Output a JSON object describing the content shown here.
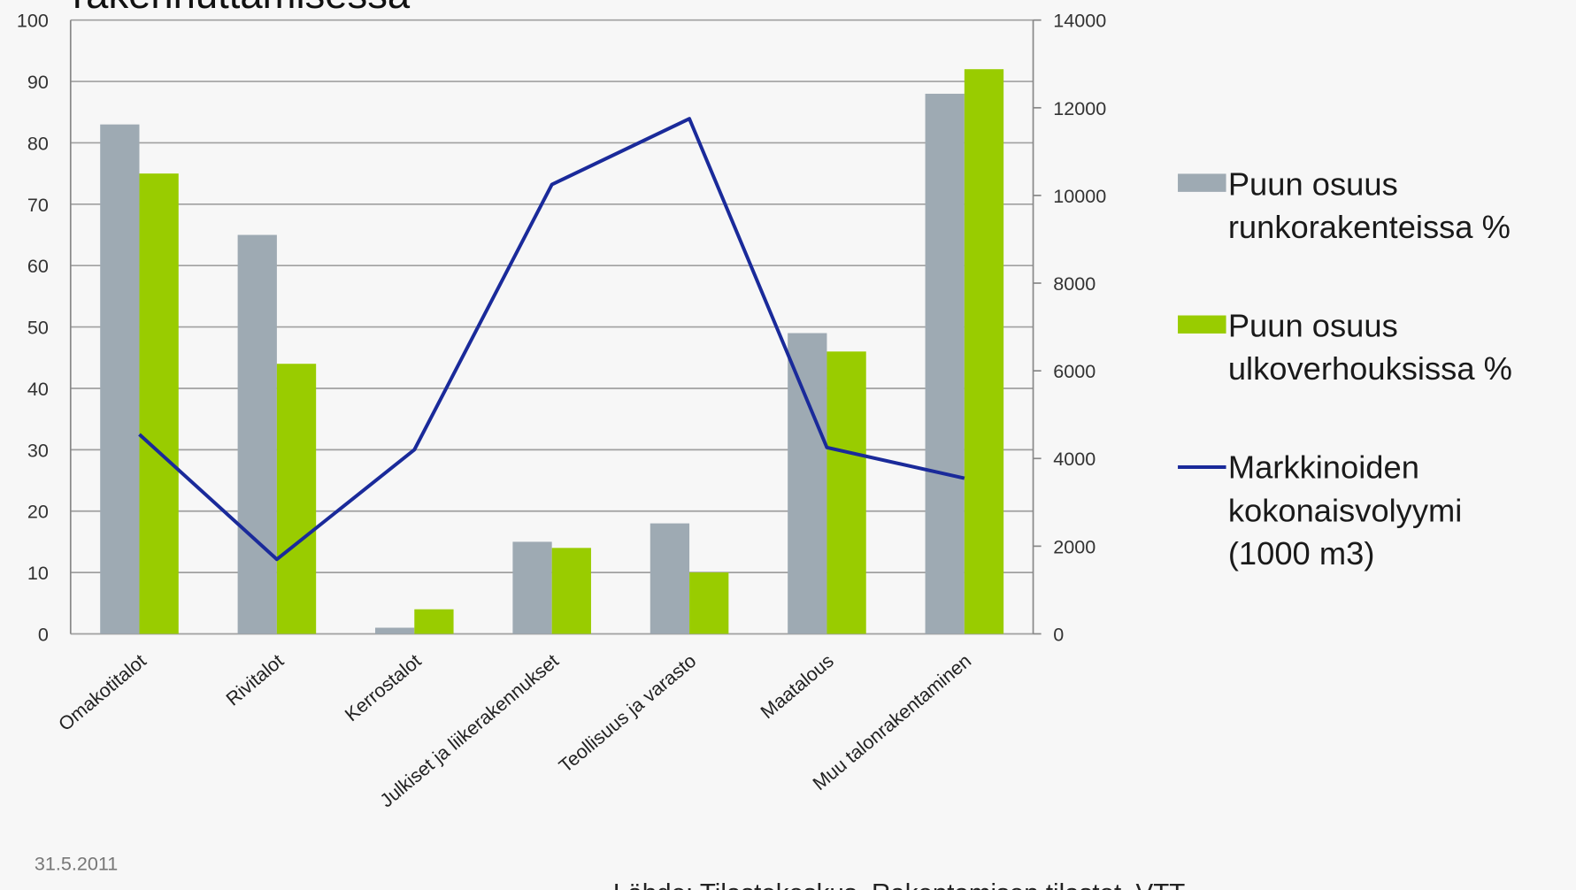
{
  "chart_data": {
    "type": "bar",
    "title": "rakennuttamisessa",
    "date": "31.5.2011",
    "source": "Lähde: Tilastokeskus, Rakentamisen tilastot, VTT",
    "categories": [
      "Omakotitalot",
      "Rivitalot",
      "Kerrostalot",
      "Julkiset ja liikerakennukset",
      "Teollisuus ja varasto",
      "Maatalous",
      "Muu talonrakentaminen"
    ],
    "series": [
      {
        "name": "Puun osuus runkorakenteissa %",
        "type": "bar",
        "color": "#9eaab3",
        "values": [
          83,
          65,
          1,
          15,
          18,
          49,
          88
        ]
      },
      {
        "name": "Puun osuus ulkoverhouksissa %",
        "type": "bar",
        "color": "#99cc00",
        "values": [
          75,
          44,
          4,
          14,
          10,
          46,
          92
        ]
      },
      {
        "name": "Markkinoiden kokonaisvolyymi (1000 m3)",
        "type": "line",
        "axis": "y2",
        "color": "#1a2a9a",
        "values": [
          4550,
          1700,
          4200,
          10250,
          11750,
          4250,
          3550
        ]
      }
    ],
    "ylim": [
      0,
      100
    ],
    "yticks": [
      0,
      10,
      20,
      30,
      40,
      50,
      60,
      70,
      80,
      90,
      100
    ],
    "y2lim": [
      0,
      14000
    ],
    "y2ticks": [
      0,
      2000,
      4000,
      6000,
      8000,
      10000,
      12000,
      14000
    ],
    "grid": true,
    "legend": "right"
  }
}
